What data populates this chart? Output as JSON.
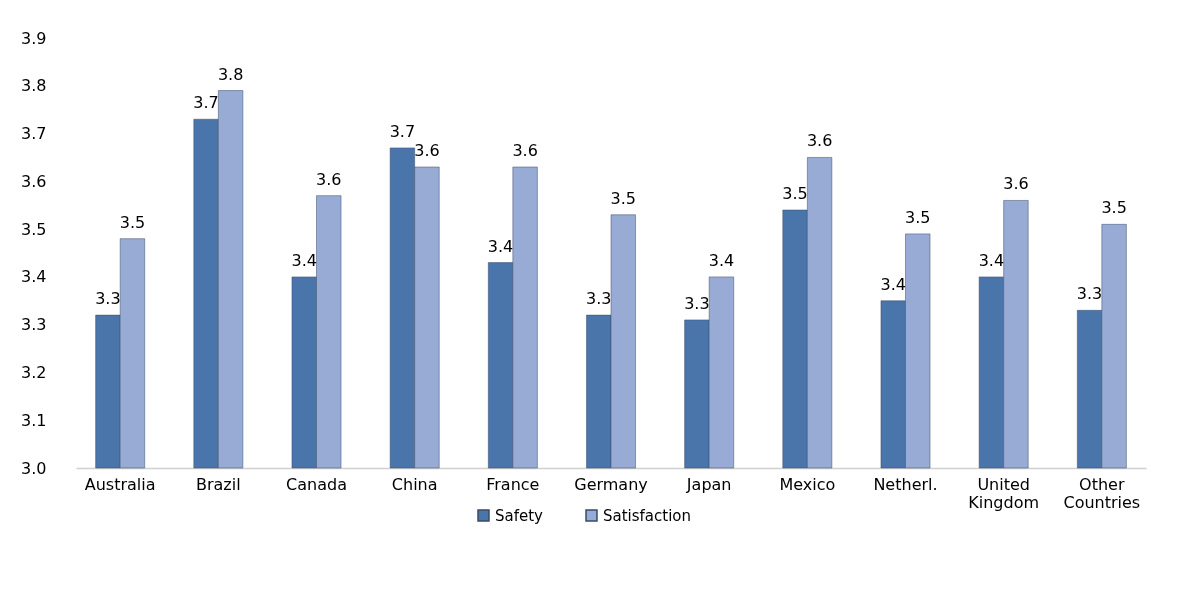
{
  "chart_data": {
    "type": "bar",
    "categories": [
      "Australia",
      "Brazil",
      "Canada",
      "China",
      "France",
      "Germany",
      "Japan",
      "Mexico",
      "Netherl.",
      "United Kingdom",
      "Other Countries"
    ],
    "series": [
      {
        "name": "Safety",
        "color": "#4a75ab",
        "values": [
          3.32,
          3.73,
          3.4,
          3.67,
          3.43,
          3.32,
          3.31,
          3.54,
          3.35,
          3.4,
          3.33
        ],
        "value_labels": [
          "3.3",
          "3.7",
          "3.4",
          "3.7",
          "3.4",
          "3.3",
          "3.3",
          "3.5",
          "3.4",
          "3.4",
          "3.3"
        ]
      },
      {
        "name": "Satisfaction",
        "color": "#97abd4",
        "values": [
          3.48,
          3.79,
          3.57,
          3.63,
          3.63,
          3.53,
          3.4,
          3.65,
          3.49,
          3.56,
          3.51
        ],
        "value_labels": [
          "3.5",
          "3.8",
          "3.6",
          "3.6",
          "3.6",
          "3.5",
          "3.4",
          "3.6",
          "3.5",
          "3.6",
          "3.5"
        ]
      }
    ],
    "ylim": [
      3.0,
      3.9
    ],
    "yticks": [
      {
        "value": 3.0,
        "label": "3.0"
      },
      3.1,
      3.2,
      3.3,
      3.4,
      3.5,
      3.6,
      3.7,
      3.8,
      3.9
    ],
    "grid": false,
    "legend": "bottom"
  }
}
